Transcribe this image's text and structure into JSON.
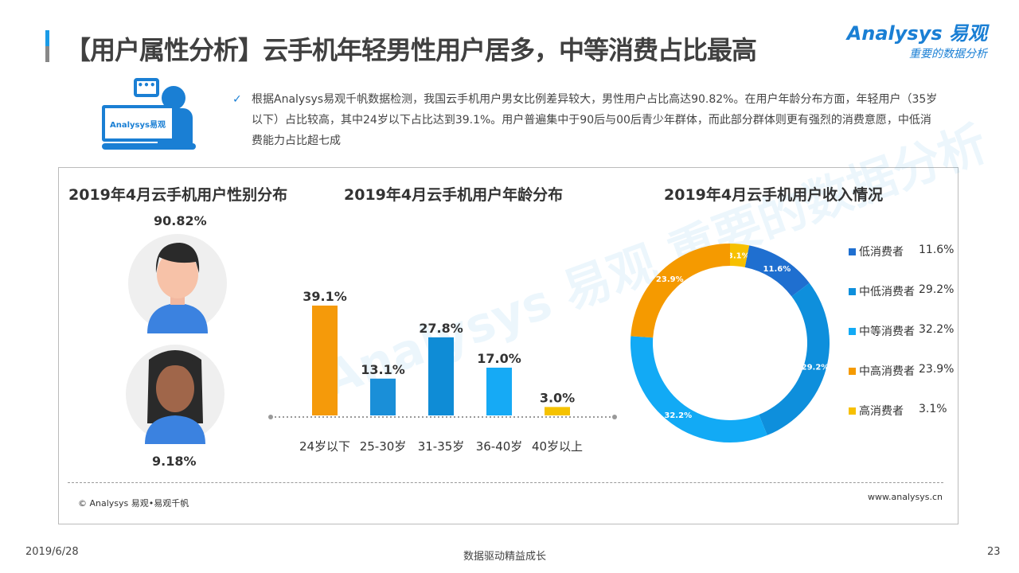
{
  "title": "【用户属性分析】云手机年轻男性用户居多，中等消费占比最高",
  "logo": {
    "brand": "Analysys 易观",
    "tagline": "重要的数据分析"
  },
  "illustration_label": "Analysys易观",
  "summary": "根据Analysys易观千帆数据检测，我国云手机用户男女比例差异较大，男性用户占比高达90.82%。在用户年龄分布方面，年轻用户（35岁以下）占比较高，其中24岁以下占比达到39.1%。用户普遍集中于90后与00后青少年群体，而此部分群体则更有强烈的消费意愿，中低消费能力占比超七成",
  "watermark": "Analysys 易观 重要的数据分析",
  "chart_data": [
    {
      "type": "pie",
      "title": "2019年4月云手机用户性别分布",
      "categories": [
        "男",
        "女"
      ],
      "labels": [
        "90.82%",
        "9.18%"
      ],
      "values": [
        90.82,
        9.18
      ]
    },
    {
      "type": "bar",
      "title": "2019年4月云手机用户年龄分布",
      "categories": [
        "24岁以下",
        "25-30岁",
        "31-35岁",
        "36-40岁",
        "40岁以上"
      ],
      "values": [
        39.1,
        13.1,
        27.8,
        17.0,
        3.0
      ],
      "labels": [
        "39.1%",
        "13.1%",
        "27.8%",
        "17.0%",
        "3.0%"
      ],
      "colors": [
        "#f59a0a",
        "#1a8fd8",
        "#0f8cd6",
        "#16aaf5",
        "#f5c200"
      ]
    },
    {
      "type": "pie",
      "title": "2019年4月云手机用户收入情况",
      "donut": true,
      "categories": [
        "低消费者",
        "中低消费者",
        "中等消费者",
        "中高消费者",
        "高消费者"
      ],
      "values": [
        11.6,
        29.2,
        32.2,
        23.9,
        3.1
      ],
      "labels": [
        "11.6%",
        "29.2%",
        "32.2%",
        "23.9%",
        "3.1%"
      ],
      "colors": [
        "#1f6fd0",
        "#0e8fdc",
        "#12aaf5",
        "#f59a00",
        "#f7c000"
      ]
    }
  ],
  "source": "© Analysys 易观•易观千帆",
  "website": "www.analysys.cn",
  "footer": {
    "date": "2019/6/28",
    "slogan": "数据驱动精益成长",
    "page": "23"
  }
}
